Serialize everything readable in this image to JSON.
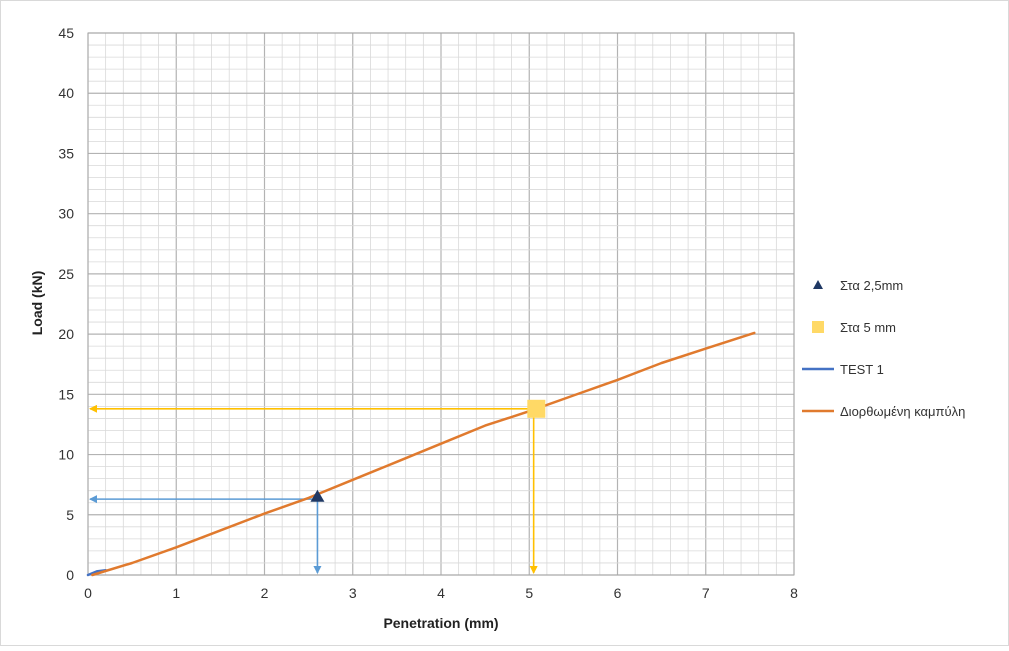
{
  "chart_data": {
    "type": "line",
    "title": "",
    "xlabel": "Penetration (mm)",
    "ylabel": "Load (kN)",
    "xlim": [
      0,
      8
    ],
    "ylim": [
      0,
      45
    ],
    "x_ticks": [
      "0",
      "1",
      "2",
      "3",
      "4",
      "5",
      "6",
      "7",
      "8"
    ],
    "y_ticks": [
      "0",
      "5",
      "10",
      "15",
      "20",
      "25",
      "30",
      "35",
      "40",
      "45"
    ],
    "grid": {
      "major": true,
      "minor": true,
      "x_minor_step": 0.2,
      "y_minor_step": 1
    },
    "legend_position": "right",
    "series": [
      {
        "name": "Στα 2,5mm",
        "kind": "marker",
        "marker": "triangle",
        "color": "#1f3864",
        "points": [
          {
            "x": 2.6,
            "y": 6.5
          }
        ]
      },
      {
        "name": "Στα 5 mm",
        "kind": "marker",
        "marker": "square",
        "color": "#ffd966",
        "points": [
          {
            "x": 5.08,
            "y": 13.8
          }
        ]
      },
      {
        "name": "TEST 1",
        "kind": "line",
        "color": "#4472c4",
        "points": [
          {
            "x": 0,
            "y": 0
          },
          {
            "x": 0.1,
            "y": 0.3
          },
          {
            "x": 0.2,
            "y": 0.4
          }
        ]
      },
      {
        "name": "Διορθωμένη καμπύλη",
        "kind": "line",
        "color": "#e07a2e",
        "points": [
          {
            "x": 0.05,
            "y": 0
          },
          {
            "x": 0.5,
            "y": 1
          },
          {
            "x": 1,
            "y": 2.3
          },
          {
            "x": 1.5,
            "y": 3.7
          },
          {
            "x": 2,
            "y": 5.1
          },
          {
            "x": 2.5,
            "y": 6.4
          },
          {
            "x": 3,
            "y": 7.9
          },
          {
            "x": 3.5,
            "y": 9.4
          },
          {
            "x": 4,
            "y": 10.9
          },
          {
            "x": 4.5,
            "y": 12.4
          },
          {
            "x": 5,
            "y": 13.6
          },
          {
            "x": 5.5,
            "y": 14.9
          },
          {
            "x": 6,
            "y": 16.2
          },
          {
            "x": 6.5,
            "y": 17.6
          },
          {
            "x": 7,
            "y": 18.8
          },
          {
            "x": 7.55,
            "y": 20.1
          }
        ]
      }
    ],
    "reference_arrows": [
      {
        "color": "#5b9bd5",
        "from": [
          2.6,
          6.3
        ],
        "to": [
          0,
          6.3
        ]
      },
      {
        "color": "#5b9bd5",
        "from": [
          2.6,
          6.3
        ],
        "to": [
          2.6,
          0
        ]
      },
      {
        "color": "#ffc000",
        "from": [
          5.05,
          13.8
        ],
        "to": [
          0,
          13.8
        ]
      },
      {
        "color": "#ffc000",
        "from": [
          5.05,
          13.8
        ],
        "to": [
          5.05,
          0
        ]
      }
    ]
  }
}
